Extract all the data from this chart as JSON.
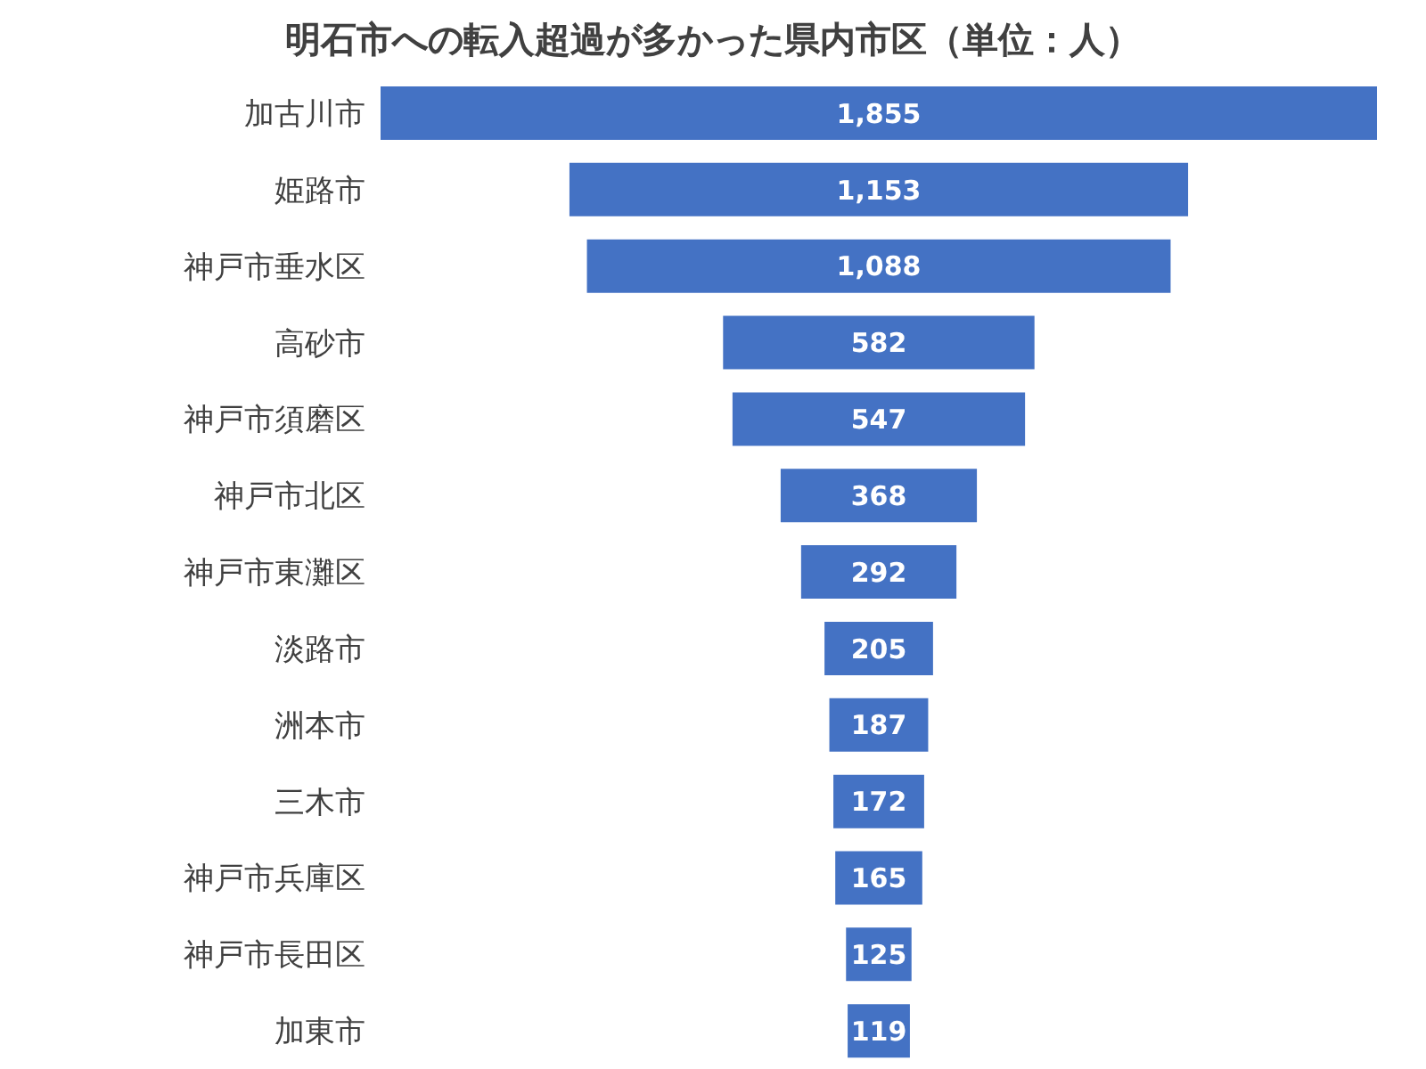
{
  "chart_data": {
    "type": "other",
    "title": "明石市への転入超過が多かった県内市区（単位：人）",
    "categories": [
      "加古川市",
      "姫路市",
      "神戸市垂水区",
      "高砂市",
      "神戸市須磨区",
      "神戸市北区",
      "神戸市東灘区",
      "淡路市",
      "洲本市",
      "三木市",
      "神戸市兵庫区",
      "神戸市長田区",
      "加東市"
    ],
    "values": [
      1855,
      1153,
      1088,
      582,
      547,
      368,
      292,
      205,
      187,
      172,
      165,
      125,
      119
    ],
    "value_labels": [
      "1,855",
      "1,153",
      "1,088",
      "582",
      "547",
      "368",
      "292",
      "205",
      "187",
      "172",
      "165",
      "125",
      "119"
    ],
    "color": "#4472c4"
  }
}
